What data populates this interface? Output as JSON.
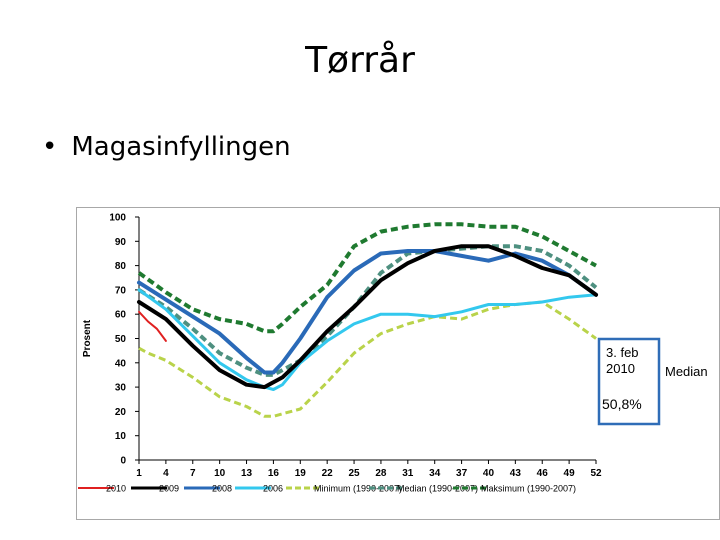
{
  "slide": {
    "title": "Tørrår",
    "bullet": "Magasinfyllingen"
  },
  "chart_data": {
    "type": "line",
    "ylabel": "Prosent",
    "xlabel": "",
    "ylim": [
      0,
      100
    ],
    "yticks": [
      0,
      10,
      20,
      30,
      40,
      50,
      60,
      70,
      80,
      90,
      100
    ],
    "xlim": [
      1,
      52
    ],
    "xticks": [
      1,
      4,
      7,
      10,
      13,
      16,
      19,
      22,
      25,
      28,
      31,
      34,
      37,
      40,
      43,
      46,
      49,
      52
    ],
    "grid": false,
    "legend_position": "bottom",
    "annotation": {
      "lines": [
        "3. feb",
        "2010"
      ],
      "value": "50,8%",
      "side_label": "Median"
    },
    "series": [
      {
        "name": "2010",
        "color": "#e02020",
        "dash": "solid",
        "width": 2,
        "x": [
          1,
          2,
          3,
          4
        ],
        "y": [
          61,
          57,
          54,
          49
        ]
      },
      {
        "name": "2009",
        "color": "#000000",
        "dash": "solid",
        "width": 4,
        "x": [
          1,
          4,
          7,
          10,
          13,
          15,
          16,
          17,
          19,
          22,
          25,
          28,
          31,
          34,
          37,
          40,
          43,
          46,
          49,
          52
        ],
        "y": [
          65,
          58,
          47,
          37,
          31,
          30,
          32,
          34,
          41,
          53,
          63,
          74,
          81,
          86,
          88,
          88,
          84,
          79,
          76,
          68
        ]
      },
      {
        "name": "2008",
        "color": "#2a6ab8",
        "dash": "solid",
        "width": 4,
        "x": [
          1,
          4,
          7,
          10,
          13,
          15,
          16,
          17,
          19,
          22,
          25,
          28,
          31,
          34,
          37,
          40,
          43,
          46,
          49,
          52
        ],
        "y": [
          73,
          66,
          59,
          52,
          42,
          36,
          36,
          40,
          50,
          67,
          78,
          85,
          86,
          86,
          84,
          82,
          85,
          82,
          76,
          68
        ]
      },
      {
        "name": "2006",
        "color": "#33c8ee",
        "dash": "solid",
        "width": 3,
        "x": [
          1,
          4,
          7,
          10,
          13,
          15,
          16,
          17,
          19,
          22,
          25,
          28,
          31,
          34,
          37,
          40,
          43,
          46,
          49,
          52
        ],
        "y": [
          70,
          62,
          51,
          40,
          33,
          30,
          29,
          31,
          40,
          49,
          56,
          60,
          60,
          59,
          61,
          64,
          64,
          65,
          67,
          68
        ]
      },
      {
        "name": "Minimum (1990-2007)",
        "color": "#b9d34a",
        "dash": "dashed",
        "width": 3,
        "x": [
          1,
          2,
          4,
          7,
          10,
          13,
          15,
          16,
          17,
          19,
          22,
          25,
          28,
          31,
          34,
          37,
          40,
          43,
          46,
          49,
          52
        ],
        "y": [
          46,
          44,
          41,
          34,
          26,
          22,
          18,
          18,
          19,
          21,
          32,
          44,
          52,
          56,
          59,
          58,
          62,
          64,
          65,
          58,
          50
        ]
      },
      {
        "name": "Median (1990-2007)",
        "color": "#4e9080",
        "dash": "dashed",
        "width": 4,
        "x": [
          1,
          4,
          7,
          10,
          13,
          15,
          16,
          17,
          19,
          22,
          25,
          28,
          31,
          34,
          37,
          40,
          43,
          46,
          49,
          52
        ],
        "y": [
          70,
          63,
          54,
          44,
          38,
          35,
          35,
          37,
          41,
          51,
          63,
          77,
          85,
          86,
          87,
          88,
          88,
          86,
          80,
          71
        ]
      },
      {
        "name": "Maksimum (1990-2007)",
        "color": "#1f7a30",
        "dash": "dashed",
        "width": 4,
        "x": [
          1,
          4,
          7,
          10,
          13,
          15,
          16,
          17,
          19,
          22,
          25,
          28,
          31,
          34,
          37,
          40,
          43,
          46,
          49,
          52
        ],
        "y": [
          77,
          69,
          62,
          58,
          56,
          53,
          53,
          56,
          63,
          72,
          88,
          94,
          96,
          97,
          97,
          96,
          96,
          92,
          86,
          80
        ]
      }
    ]
  }
}
